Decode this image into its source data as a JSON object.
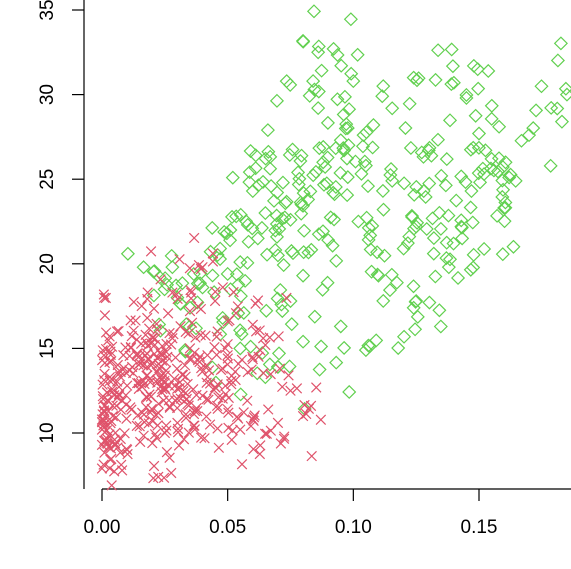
{
  "chart_data": {
    "type": "scatter",
    "title": "",
    "xlabel": "",
    "ylabel": "",
    "xlim": [
      -0.005,
      0.188
    ],
    "ylim": [
      6.5,
      35
    ],
    "x_ticks": [
      {
        "value": 0.0,
        "label": "0.00"
      },
      {
        "value": 0.05,
        "label": "0.05"
      },
      {
        "value": 0.1,
        "label": "0.10"
      },
      {
        "value": 0.15,
        "label": "0.15"
      }
    ],
    "y_ticks": [
      {
        "value": 10,
        "label": "10"
      },
      {
        "value": 15,
        "label": "15"
      },
      {
        "value": 20,
        "label": "20"
      },
      {
        "value": 25,
        "label": "25"
      },
      {
        "value": 30,
        "label": "30"
      },
      {
        "value": 35,
        "label": "35"
      }
    ],
    "grid": false,
    "legend": "none",
    "series": [
      {
        "marker": "cross",
        "color": "#DF536B",
        "count": 420,
        "points": [
          [
            0.0,
            7.9
          ],
          [
            0.0,
            9.3
          ],
          [
            0.0,
            10.2
          ],
          [
            0.0,
            10.8
          ],
          [
            0.001,
            11.6
          ],
          [
            0.002,
            12.4
          ],
          [
            0.001,
            13.5
          ],
          [
            0.003,
            14.2
          ],
          [
            0.004,
            15.1
          ],
          [
            0.006,
            16.0
          ],
          [
            0.008,
            11.9
          ],
          [
            0.01,
            12.8
          ],
          [
            0.012,
            13.9
          ],
          [
            0.014,
            14.7
          ],
          [
            0.015,
            10.4
          ],
          [
            0.016,
            11.2
          ],
          [
            0.018,
            12.1
          ],
          [
            0.019,
            13.2
          ],
          [
            0.02,
            14.1
          ],
          [
            0.021,
            15.2
          ],
          [
            0.022,
            16.1
          ],
          [
            0.024,
            12.6
          ],
          [
            0.025,
            13.4
          ],
          [
            0.026,
            14.5
          ],
          [
            0.028,
            15.6
          ],
          [
            0.03,
            12.0
          ],
          [
            0.031,
            13.0
          ],
          [
            0.033,
            14.0
          ],
          [
            0.035,
            15.0
          ],
          [
            0.037,
            11.3
          ],
          [
            0.04,
            12.2
          ],
          [
            0.042,
            13.3
          ],
          [
            0.045,
            12.7
          ],
          [
            0.048,
            13.8
          ],
          [
            0.05,
            14.6
          ],
          [
            0.005,
            9.6
          ],
          [
            0.01,
            9.0
          ],
          [
            0.02,
            9.4
          ],
          [
            0.025,
            10.0
          ],
          [
            0.03,
            10.6
          ],
          [
            0.035,
            17.2
          ],
          [
            0.04,
            19.8
          ],
          [
            0.045,
            17.8
          ],
          [
            0.028,
            18.3
          ],
          [
            0.018,
            16.8
          ],
          [
            0.055,
            10.2
          ],
          [
            0.06,
            10.8
          ],
          [
            0.07,
            10.6
          ],
          [
            0.075,
            12.5
          ],
          [
            0.08,
            11.0
          ],
          [
            0.06,
            16.4
          ],
          [
            0.065,
            15.2
          ],
          [
            0.058,
            13.6
          ],
          [
            0.043,
            10.5
          ],
          [
            0.05,
            11.4
          ]
        ]
      },
      {
        "marker": "diamond",
        "color": "#61D04F",
        "count": 380,
        "points": [
          [
            0.023,
            19.2
          ],
          [
            0.028,
            19.8
          ],
          [
            0.03,
            18.0
          ],
          [
            0.035,
            17.4
          ],
          [
            0.04,
            18.6
          ],
          [
            0.047,
            20.9
          ],
          [
            0.05,
            19.4
          ],
          [
            0.055,
            20.1
          ],
          [
            0.058,
            22.3
          ],
          [
            0.06,
            24.3
          ],
          [
            0.062,
            21.5
          ],
          [
            0.065,
            23.0
          ],
          [
            0.066,
            27.9
          ],
          [
            0.07,
            20.5
          ],
          [
            0.072,
            24.8
          ],
          [
            0.075,
            22.6
          ],
          [
            0.078,
            25.4
          ],
          [
            0.08,
            19.3
          ],
          [
            0.082,
            23.8
          ],
          [
            0.084,
            30.8
          ],
          [
            0.086,
            32.5
          ],
          [
            0.086,
            29.2
          ],
          [
            0.088,
            26.0
          ],
          [
            0.09,
            21.4
          ],
          [
            0.092,
            24.2
          ],
          [
            0.095,
            27.3
          ],
          [
            0.097,
            28.0
          ],
          [
            0.1,
            30.8
          ],
          [
            0.102,
            22.5
          ],
          [
            0.105,
            25.8
          ],
          [
            0.108,
            28.2
          ],
          [
            0.11,
            19.3
          ],
          [
            0.112,
            23.2
          ],
          [
            0.115,
            25.6
          ],
          [
            0.12,
            20.9
          ],
          [
            0.124,
            31.0
          ],
          [
            0.125,
            22.2
          ],
          [
            0.128,
            24.3
          ],
          [
            0.13,
            26.7
          ],
          [
            0.132,
            20.6
          ],
          [
            0.135,
            25.2
          ],
          [
            0.138,
            19.8
          ],
          [
            0.14,
            30.7
          ],
          [
            0.143,
            22.2
          ],
          [
            0.145,
            29.8
          ],
          [
            0.147,
            24.3
          ],
          [
            0.15,
            27.7
          ],
          [
            0.152,
            25.3
          ],
          [
            0.155,
            26.2
          ],
          [
            0.158,
            28.1
          ],
          [
            0.16,
            23.3
          ],
          [
            0.162,
            25.1
          ],
          [
            0.183,
            28.4
          ],
          [
            0.185,
            30.0
          ],
          [
            0.187,
            33.1
          ],
          [
            0.105,
            14.9
          ],
          [
            0.095,
            16.3
          ],
          [
            0.08,
            15.4
          ],
          [
            0.075,
            17.8
          ],
          [
            0.07,
            13.9
          ],
          [
            0.065,
            13.3
          ],
          [
            0.055,
            15.0
          ],
          [
            0.124,
            17.4
          ],
          [
            0.125,
            17.8
          ],
          [
            0.048,
            16.8
          ]
        ]
      }
    ]
  }
}
